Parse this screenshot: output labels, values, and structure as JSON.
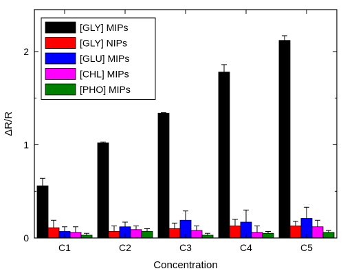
{
  "chart_data": {
    "type": "bar",
    "title": "",
    "xlabel": "Concentration",
    "ylabel": "ΔR/R",
    "categories": [
      "C1",
      "C2",
      "C3",
      "C4",
      "C5"
    ],
    "ylim": [
      0,
      2.45
    ],
    "yticks": [
      0,
      1,
      2
    ],
    "ytick_labels": [
      "0",
      "1",
      "2"
    ],
    "error_bars": true,
    "legend_position": "top-left",
    "series": [
      {
        "name": "[GLY] MIPs",
        "color": "#000000",
        "values": [
          0.56,
          1.02,
          1.34,
          1.78,
          2.12
        ],
        "errors": [
          0.08,
          0.01,
          0.005,
          0.08,
          0.05
        ]
      },
      {
        "name": "[GLY] NIPs",
        "color": "#ff0000",
        "values": [
          0.11,
          0.07,
          0.1,
          0.13,
          0.13
        ],
        "errors": [
          0.08,
          0.06,
          0.06,
          0.07,
          0.05
        ]
      },
      {
        "name": "[GLU] MIPs",
        "color": "#0000ff",
        "values": [
          0.07,
          0.12,
          0.19,
          0.17,
          0.21
        ],
        "errors": [
          0.05,
          0.05,
          0.1,
          0.13,
          0.12
        ]
      },
      {
        "name": "[CHL] MIPs",
        "color": "#ff00ff",
        "values": [
          0.06,
          0.09,
          0.08,
          0.06,
          0.12
        ],
        "errors": [
          0.06,
          0.04,
          0.05,
          0.07,
          0.07
        ]
      },
      {
        "name": "[PHO] MIPs",
        "color": "#008000",
        "values": [
          0.03,
          0.07,
          0.03,
          0.05,
          0.06
        ],
        "errors": [
          0.02,
          0.03,
          0.02,
          0.02,
          0.02
        ]
      }
    ]
  }
}
